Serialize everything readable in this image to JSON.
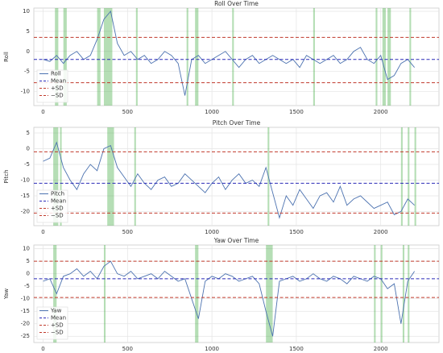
{
  "chart_data": [
    {
      "type": "line",
      "title": "Roll Over Time",
      "ylabel": "Roll",
      "x": [
        0,
        40,
        80,
        120,
        160,
        200,
        240,
        280,
        320,
        360,
        400,
        440,
        480,
        520,
        560,
        600,
        640,
        680,
        720,
        760,
        800,
        840,
        880,
        920,
        960,
        1000,
        1040,
        1080,
        1120,
        1160,
        1200,
        1240,
        1280,
        1320,
        1360,
        1400,
        1440,
        1480,
        1520,
        1560,
        1600,
        1640,
        1680,
        1720,
        1760,
        1800,
        1840,
        1880,
        1920,
        1960,
        2000,
        2040,
        2080,
        2120,
        2160,
        2200
      ],
      "series": [
        {
          "name": "Roll",
          "color": "#4c72b0",
          "values": [
            -2,
            -2.5,
            -1,
            -3,
            -1,
            0,
            -2,
            -1,
            3,
            8,
            10,
            2,
            -1,
            0,
            -2,
            -1,
            -3,
            -2,
            0,
            -1,
            -3,
            -11,
            -2,
            -1,
            -3,
            -2,
            -1,
            0,
            -2,
            -4,
            -2,
            -1,
            -3,
            -2,
            -1,
            -2,
            -3,
            -2,
            -4,
            -1,
            -2,
            -3,
            -2,
            -1,
            -3,
            -2,
            0,
            1,
            -2,
            -3,
            -1,
            -7,
            -6,
            -3,
            -2,
            -4
          ]
        }
      ],
      "reference_lines": [
        {
          "name": "Mean",
          "value": -2,
          "color": "#2a2ab8"
        },
        {
          "name": "+SD",
          "value": 3.5,
          "color": "#c0392b"
        },
        {
          "name": "−SD",
          "value": -7.8,
          "color": "#c0392b"
        }
      ],
      "highlight_color": "#2ca02c",
      "highlights": [
        [
          70,
          90
        ],
        [
          120,
          140
        ],
        [
          320,
          340
        ],
        [
          360,
          410
        ],
        [
          550,
          560
        ],
        [
          850,
          860
        ],
        [
          900,
          920
        ],
        [
          1120,
          1130
        ],
        [
          1600,
          1610
        ],
        [
          1970,
          1980
        ],
        [
          2010,
          2030
        ],
        [
          2040,
          2060
        ],
        [
          2170,
          2180
        ]
      ],
      "xlim": [
        -55,
        2345
      ],
      "xticks": [
        0,
        500,
        1000,
        1500,
        2000
      ],
      "ylim": [
        -13.5,
        10.8
      ],
      "yticks": [
        -10,
        -5,
        0,
        5,
        10
      ],
      "grid": true,
      "legend": "lower left"
    },
    {
      "type": "line",
      "title": "Pitch Over Time",
      "ylabel": "Pitch",
      "x": [
        0,
        40,
        80,
        120,
        160,
        200,
        240,
        280,
        320,
        360,
        400,
        440,
        480,
        520,
        560,
        600,
        640,
        680,
        720,
        760,
        800,
        840,
        880,
        920,
        960,
        1000,
        1040,
        1080,
        1120,
        1160,
        1200,
        1240,
        1280,
        1320,
        1360,
        1400,
        1440,
        1480,
        1520,
        1560,
        1600,
        1640,
        1680,
        1720,
        1760,
        1800,
        1840,
        1880,
        1920,
        1960,
        2000,
        2040,
        2080,
        2120,
        2160,
        2200
      ],
      "series": [
        {
          "name": "Pitch",
          "color": "#4c72b0",
          "values": [
            -4,
            -3,
            2,
            -6,
            -10,
            -13,
            -8,
            -5,
            -7,
            0,
            1,
            -6,
            -9,
            -12,
            -8,
            -11,
            -13,
            -10,
            -9,
            -12,
            -11,
            -8,
            -10,
            -12,
            -14,
            -11,
            -9,
            -13,
            -10,
            -8,
            -11,
            -10,
            -12,
            -6,
            -14,
            -22,
            -15,
            -18,
            -13,
            -16,
            -19,
            -15,
            -14,
            -17,
            -12,
            -18,
            -16,
            -15,
            -17,
            -19,
            -18,
            -17,
            -21,
            -20,
            -16,
            -18
          ]
        }
      ],
      "reference_lines": [
        {
          "name": "Mean",
          "value": -11,
          "color": "#2a2ab8"
        },
        {
          "name": "+SD",
          "value": -1,
          "color": "#c0392b"
        },
        {
          "name": "−SD",
          "value": -20.5,
          "color": "#c0392b"
        }
      ],
      "highlight_color": "#2ca02c",
      "highlights": [
        [
          60,
          90
        ],
        [
          100,
          110
        ],
        [
          380,
          420
        ],
        [
          540,
          550
        ],
        [
          1330,
          1340
        ],
        [
          2120,
          2130
        ],
        [
          2160,
          2170
        ],
        [
          2200,
          2210
        ]
      ],
      "xlim": [
        -55,
        2345
      ],
      "xticks": [
        0,
        500,
        1000,
        1500,
        2000
      ],
      "ylim": [
        -24.5,
        6.8
      ],
      "yticks": [
        -20,
        -15,
        -10,
        -5,
        0,
        5
      ],
      "grid": true,
      "legend": "lower left"
    },
    {
      "type": "line",
      "title": "Yaw Over Time",
      "ylabel": "Yaw",
      "x": [
        0,
        40,
        80,
        120,
        160,
        200,
        240,
        280,
        320,
        360,
        400,
        440,
        480,
        520,
        560,
        600,
        640,
        680,
        720,
        760,
        800,
        840,
        880,
        920,
        960,
        1000,
        1040,
        1080,
        1120,
        1160,
        1200,
        1240,
        1280,
        1320,
        1360,
        1400,
        1440,
        1480,
        1520,
        1560,
        1600,
        1640,
        1680,
        1720,
        1760,
        1800,
        1840,
        1880,
        1920,
        1960,
        2000,
        2040,
        2080,
        2120,
        2160,
        2200
      ],
      "series": [
        {
          "name": "Yaw",
          "color": "#4c72b0",
          "values": [
            -3,
            -2,
            -8,
            -1,
            0,
            2,
            -1,
            1,
            -2,
            3,
            5,
            0,
            -1,
            1,
            -2,
            -1,
            0,
            -2,
            1,
            -1,
            -3,
            -2,
            -10,
            -18,
            -3,
            -1,
            -2,
            0,
            -1,
            -3,
            -2,
            -1,
            -4,
            -15,
            -25,
            -3,
            -2,
            -1,
            -3,
            -2,
            0,
            -2,
            -3,
            -1,
            -2,
            -4,
            -1,
            -2,
            -3,
            -1,
            -2,
            -6,
            -4,
            -20,
            -3,
            1
          ]
        }
      ],
      "reference_lines": [
        {
          "name": "Mean",
          "value": -2,
          "color": "#2a2ab8"
        },
        {
          "name": "+SD",
          "value": 5,
          "color": "#c0392b"
        },
        {
          "name": "−SD",
          "value": -9.5,
          "color": "#c0392b"
        }
      ],
      "highlight_color": "#2ca02c",
      "highlights": [
        [
          60,
          80
        ],
        [
          360,
          370
        ],
        [
          900,
          920
        ],
        [
          1320,
          1360
        ],
        [
          1960,
          1970
        ],
        [
          2000,
          2010
        ],
        [
          2130,
          2140
        ],
        [
          2160,
          2170
        ]
      ],
      "xlim": [
        -55,
        2345
      ],
      "xticks": [
        0,
        500,
        1000,
        1500,
        2000
      ],
      "ylim": [
        -27.5,
        11.5
      ],
      "yticks": [
        -25,
        -20,
        -15,
        -10,
        -5,
        0,
        5,
        10
      ],
      "grid": true,
      "legend": "lower left"
    }
  ]
}
